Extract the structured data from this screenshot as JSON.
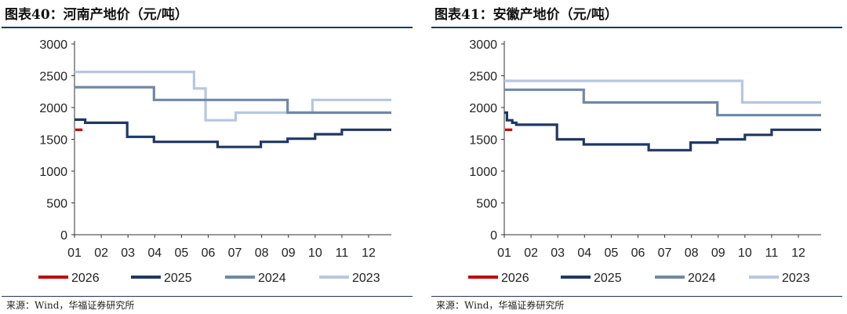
{
  "chart_data": [
    {
      "type": "line",
      "step": true,
      "title": "图表40：河南产地价（元/吨）",
      "source": "来源：Wind，华福证券研究所",
      "xlabel": "",
      "ylabel": "",
      "x_ticks": [
        "01",
        "02",
        "03",
        "04",
        "05",
        "06",
        "07",
        "08",
        "09",
        "10",
        "11",
        "12"
      ],
      "x_range": [
        1,
        12.85
      ],
      "y_ticks": [
        "0",
        "500",
        "1000",
        "1500",
        "2000",
        "2500",
        "3000"
      ],
      "ylim": [
        0,
        3000
      ],
      "legend_position": "bottom",
      "series": [
        {
          "name": "2026",
          "color": "#c00000",
          "x": [
            1.03,
            1.3
          ],
          "y": [
            1650,
            1650
          ]
        },
        {
          "name": "2025",
          "color": "#1f3864",
          "x": [
            1.0,
            1.4,
            1.4,
            2.97,
            2.97,
            3.97,
            3.97,
            6.35,
            6.35,
            7.97,
            7.97,
            8.97,
            8.97,
            10.0,
            10.0,
            11.0,
            11.0,
            12.85
          ],
          "y": [
            1810,
            1810,
            1760,
            1760,
            1540,
            1540,
            1460,
            1460,
            1380,
            1380,
            1460,
            1460,
            1510,
            1510,
            1580,
            1580,
            1650,
            1650
          ]
        },
        {
          "name": "2024",
          "color": "#6f88a8",
          "x": [
            1.0,
            3.97,
            3.97,
            8.97,
            8.97,
            12.85
          ],
          "y": [
            2320,
            2320,
            2120,
            2120,
            1920,
            1920
          ]
        },
        {
          "name": "2023",
          "color": "#b8c6e0",
          "x": [
            1.0,
            5.47,
            5.47,
            5.9,
            5.9,
            7.03,
            7.03,
            9.9,
            9.9,
            12.85
          ],
          "y": [
            2560,
            2560,
            2300,
            2300,
            1800,
            1800,
            1920,
            1920,
            2120,
            2120
          ]
        }
      ]
    },
    {
      "type": "line",
      "step": true,
      "title": "图表41：安徽产地价（元/吨）",
      "source": "来源：Wind，华福证券研究所",
      "xlabel": "",
      "ylabel": "",
      "x_ticks": [
        "01",
        "02",
        "03",
        "04",
        "05",
        "06",
        "07",
        "08",
        "09",
        "10",
        "11",
        "12"
      ],
      "x_range": [
        1,
        12.85
      ],
      "y_ticks": [
        "0",
        "500",
        "1000",
        "1500",
        "2000",
        "2500",
        "3000"
      ],
      "ylim": [
        0,
        3000
      ],
      "legend_position": "bottom",
      "series": [
        {
          "name": "2026",
          "color": "#c00000",
          "x": [
            1.03,
            1.3
          ],
          "y": [
            1650,
            1650
          ]
        },
        {
          "name": "2025",
          "color": "#1f3864",
          "x": [
            1.0,
            1.1,
            1.1,
            1.3,
            1.3,
            1.45,
            1.45,
            2.97,
            2.97,
            3.97,
            3.97,
            6.4,
            6.4,
            7.97,
            7.97,
            8.97,
            8.97,
            10.0,
            10.0,
            11.0,
            11.0,
            12.85
          ],
          "y": [
            1920,
            1920,
            1800,
            1800,
            1760,
            1760,
            1730,
            1730,
            1500,
            1500,
            1420,
            1420,
            1330,
            1330,
            1450,
            1450,
            1500,
            1500,
            1570,
            1570,
            1650,
            1650
          ]
        },
        {
          "name": "2024",
          "color": "#6f88a8",
          "x": [
            1.0,
            3.97,
            3.97,
            8.97,
            8.97,
            12.85
          ],
          "y": [
            2280,
            2280,
            2080,
            2080,
            1880,
            1880
          ]
        },
        {
          "name": "2023",
          "color": "#b8c6e0",
          "x": [
            1.0,
            9.9,
            9.9,
            12.85
          ],
          "y": [
            2420,
            2420,
            2080,
            2080
          ]
        }
      ]
    }
  ]
}
